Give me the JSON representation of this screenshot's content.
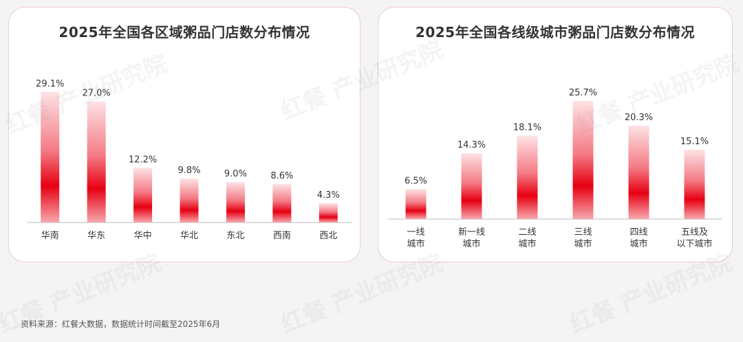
{
  "watermark": {
    "brand": "红餐",
    "text": "产业研究院"
  },
  "source_note": "资料来源：红餐大数据，数据统计时间截至2025年6月",
  "colors": {
    "bar_dark": "#e60012",
    "bar_light": "#fde3e5",
    "card_border": "#f2c9cb"
  },
  "chart_data": [
    {
      "type": "bar",
      "title": "2025年全国各区域粥品门店数分布情况",
      "categories": [
        [
          "华南"
        ],
        [
          "华东"
        ],
        [
          "华中"
        ],
        [
          "华北"
        ],
        [
          "东北"
        ],
        [
          "西南"
        ],
        [
          "西北"
        ]
      ],
      "values": [
        29.1,
        27.0,
        12.2,
        9.8,
        9.0,
        8.6,
        4.3
      ],
      "value_suffix": "%",
      "ylim": [
        0,
        30
      ],
      "grid": false,
      "legend": "none"
    },
    {
      "type": "bar",
      "title": "2025年全国各线级城市粥品门店数分布情况",
      "categories": [
        [
          "一线",
          "城市"
        ],
        [
          "新一线",
          "城市"
        ],
        [
          "二线",
          "城市"
        ],
        [
          "三线",
          "城市"
        ],
        [
          "四线",
          "城市"
        ],
        [
          "五线及",
          "以下城市"
        ]
      ],
      "values": [
        6.5,
        14.3,
        18.1,
        25.7,
        20.3,
        15.1
      ],
      "value_suffix": "%",
      "ylim": [
        0,
        30
      ],
      "grid": false,
      "legend": "none"
    }
  ]
}
